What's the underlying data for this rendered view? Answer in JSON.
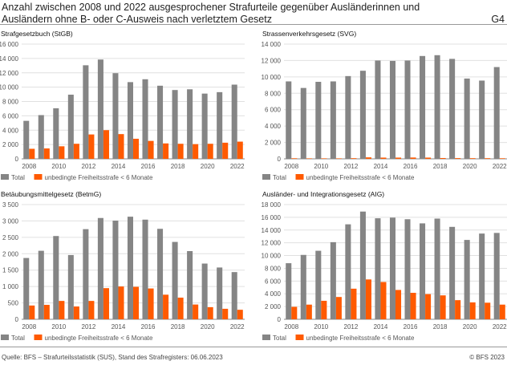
{
  "header": {
    "title": "Anzahl zwischen 2008 und 2022 ausgesprochener Strafurteile gegenüber Ausländerinnen und Ausländern ohne B- oder C-Ausweis nach verletztem Gesetz",
    "graphic_number": "G4"
  },
  "footer": {
    "source": "Quelle: BFS – Strafurteilsstatistik (SUS), Stand des Strafregisters: 06.06.2023",
    "copyright": "© BFS 2023"
  },
  "colors": {
    "total": "#858585",
    "short_prison": "#ff5a00",
    "grid": "#e0e0e0"
  },
  "chart_data": [
    {
      "type": "bar",
      "title": "Strafgesetzbuch (StGB)",
      "categories": [
        "2008",
        "2009",
        "2010",
        "2011",
        "2012",
        "2013",
        "2014",
        "2015",
        "2016",
        "2017",
        "2018",
        "2019",
        "2020",
        "2021",
        "2022"
      ],
      "tick_labels": [
        "2008",
        "2010",
        "2012",
        "2014",
        "2016",
        "2018",
        "2020",
        "2022"
      ],
      "ylim": [
        0,
        16000
      ],
      "yticks": [
        "0",
        "2 000",
        "4 000",
        "6 000",
        "8 000",
        "10 000",
        "12 000",
        "14 000",
        "16 000"
      ],
      "legend": "bottom-left",
      "series": [
        {
          "name": "Total",
          "values": [
            5300,
            6100,
            7050,
            8950,
            13050,
            13850,
            11950,
            10700,
            11100,
            10200,
            9600,
            9700,
            9100,
            9300,
            10350
          ]
        },
        {
          "name": "unbedingte Freiheitsstrafe < 6 Monate",
          "values": [
            1400,
            1450,
            1750,
            2100,
            3400,
            4000,
            3450,
            2800,
            2500,
            2150,
            2100,
            2050,
            2100,
            2250,
            2400
          ]
        }
      ]
    },
    {
      "type": "bar",
      "title": "Strassenverkehrsgesetz (SVG)",
      "categories": [
        "2008",
        "2009",
        "2010",
        "2011",
        "2012",
        "2013",
        "2014",
        "2015",
        "2016",
        "2017",
        "2018",
        "2019",
        "2020",
        "2021",
        "2022"
      ],
      "tick_labels": [
        "2008",
        "2010",
        "2012",
        "2014",
        "2016",
        "2018",
        "2020",
        "2022"
      ],
      "ylim": [
        0,
        14000
      ],
      "yticks": [
        "0",
        "2 000",
        "4 000",
        "6 000",
        "8 000",
        "10 000",
        "12 000",
        "14 000"
      ],
      "legend": "bottom-left",
      "series": [
        {
          "name": "Total",
          "values": [
            9450,
            8650,
            9400,
            9450,
            10100,
            10750,
            12000,
            11950,
            12000,
            12550,
            12650,
            12200,
            9800,
            9550,
            11200
          ]
        },
        {
          "name": "unbedingte Freiheitsstrafe < 6 Monate",
          "values": [
            70,
            60,
            60,
            60,
            80,
            180,
            150,
            150,
            160,
            150,
            100,
            90,
            80,
            80,
            70
          ]
        }
      ]
    },
    {
      "type": "bar",
      "title": "Betäubungsmittelgesetz (BetmG)",
      "categories": [
        "2008",
        "2009",
        "2010",
        "2011",
        "2012",
        "2013",
        "2014",
        "2015",
        "2016",
        "2017",
        "2018",
        "2019",
        "2020",
        "2021",
        "2022"
      ],
      "tick_labels": [
        "2008",
        "2010",
        "2012",
        "2014",
        "2016",
        "2018",
        "2020",
        "2022"
      ],
      "ylim": [
        0,
        3500
      ],
      "yticks": [
        "0",
        "500",
        "1 000",
        "1 500",
        "2 000",
        "2 500",
        "3 000",
        "3 500"
      ],
      "legend": "bottom-left",
      "series": [
        {
          "name": "Total",
          "values": [
            1870,
            2090,
            2540,
            1960,
            2750,
            3090,
            3010,
            3130,
            3040,
            2760,
            2360,
            2080,
            1700,
            1580,
            1440
          ]
        },
        {
          "name": "unbedingte Freiheitsstrafe < 6 Monate",
          "values": [
            420,
            440,
            560,
            390,
            560,
            950,
            1000,
            990,
            940,
            750,
            660,
            450,
            370,
            320,
            290
          ]
        }
      ]
    },
    {
      "type": "bar",
      "title": "Ausländer- und Integrationsgesetz (AIG)",
      "categories": [
        "2008",
        "2009",
        "2010",
        "2011",
        "2012",
        "2013",
        "2014",
        "2015",
        "2016",
        "2017",
        "2018",
        "2019",
        "2020",
        "2021",
        "2022"
      ],
      "tick_labels": [
        "2008",
        "2010",
        "2012",
        "2014",
        "2016",
        "2018",
        "2020",
        "2022"
      ],
      "ylim": [
        0,
        18000
      ],
      "yticks": [
        "0",
        "2 000",
        "4 000",
        "6 000",
        "8 000",
        "10 000",
        "12 000",
        "14 000",
        "16 000",
        "18 000"
      ],
      "legend": "bottom-left",
      "series": [
        {
          "name": "Total",
          "values": [
            8800,
            10100,
            10750,
            12100,
            14900,
            16900,
            15850,
            15950,
            15700,
            15050,
            15800,
            14500,
            12450,
            13450,
            13550
          ]
        },
        {
          "name": "unbedingte Freiheitsstrafe < 6 Monate",
          "values": [
            1950,
            2300,
            2900,
            3500,
            4800,
            6250,
            5850,
            4600,
            4150,
            3950,
            3750,
            3000,
            2650,
            2600,
            2300
          ]
        }
      ]
    }
  ]
}
